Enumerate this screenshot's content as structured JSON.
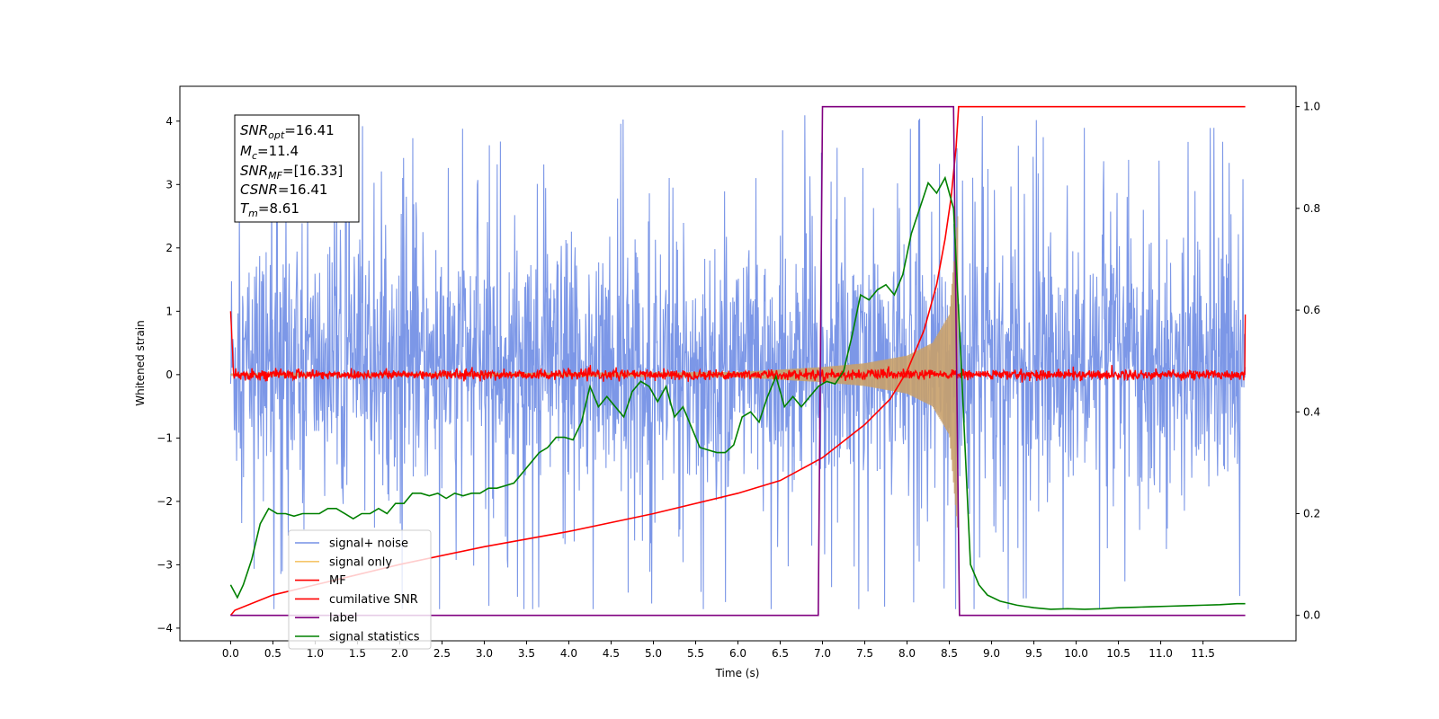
{
  "chart_data": {
    "type": "line",
    "xlabel": "Time (s)",
    "ylabel": "Whitened strain",
    "xlim": [
      -0.6,
      12.6
    ],
    "ylim_left": [
      -4.2,
      4.55
    ],
    "ylim_right": [
      -0.05,
      1.04
    ],
    "x_ticks": [
      "0.0",
      "0.5",
      "1.0",
      "1.5",
      "2.0",
      "2.5",
      "3.0",
      "3.5",
      "4.0",
      "4.5",
      "5.0",
      "5.5",
      "6.0",
      "6.5",
      "7.0",
      "7.5",
      "8.0",
      "8.5",
      "9.0",
      "9.5",
      "10.0",
      "10.5",
      "11.0",
      "11.5"
    ],
    "y_ticks_left": [
      "−4",
      "−3",
      "−2",
      "−1",
      "0",
      "1",
      "2",
      "3",
      "4"
    ],
    "y_ticks_right": [
      "0.0",
      "0.2",
      "0.4",
      "0.6",
      "0.8",
      "1.0"
    ],
    "annotation": {
      "snr_opt": {
        "base": "SNR",
        "sub": "opt",
        "value": "=16.41"
      },
      "mc": {
        "base": "M",
        "sub": "c",
        "value": "=11.4"
      },
      "snr_mf": {
        "base": "SNR",
        "sub": "MF",
        "value": "=[16.33]"
      },
      "csnr": {
        "base": "CSNR",
        "value": "=16.41"
      },
      "tm": {
        "base": "T",
        "sub": "m",
        "value": "=8.61"
      }
    },
    "legend": {
      "placement": "lower-left",
      "entries": [
        {
          "label": "signal+ noise",
          "color": "#7591e6"
        },
        {
          "label": "signal only",
          "color": "#f5c56a"
        },
        {
          "label": "MF",
          "color": "#ff0000"
        },
        {
          "label": "cumilative SNR",
          "color": "#ff0000"
        },
        {
          "label": "label",
          "color": "#800080"
        },
        {
          "label": "signal statistics",
          "color": "#008000"
        }
      ]
    },
    "series": [
      {
        "name": "signal+ noise",
        "axis": "left",
        "color": "#7591e6",
        "t_range": [
          0.0,
          12.0
        ],
        "noise_envelope": [
          -3.7,
          4.15
        ],
        "typical_range": [
          -2.3,
          2.6
        ]
      },
      {
        "name": "signal only",
        "axis": "left",
        "color": "#c8a06a",
        "chirp_envelope": {
          "t": [
            0.0,
            6.0,
            7.0,
            7.5,
            8.0,
            8.3,
            8.5,
            8.6
          ],
          "amp": [
            0.01,
            0.04,
            0.12,
            0.18,
            0.3,
            0.5,
            0.95,
            2.5
          ]
        },
        "t_range": [
          0.0,
          8.6
        ]
      },
      {
        "name": "MF",
        "axis": "left",
        "color": "#ff0000",
        "baseline": 0.0,
        "noise_amp": 0.08,
        "t_range": [
          0.0,
          12.0
        ],
        "edges": [
          {
            "t": 0.0,
            "y": 1.0
          },
          {
            "t": 12.0,
            "y": 0.95
          }
        ]
      },
      {
        "name": "cumilative SNR",
        "axis": "right",
        "color": "#ff0000",
        "t": [
          0.0,
          0.05,
          0.5,
          1.0,
          2.0,
          3.0,
          4.0,
          5.0,
          6.0,
          6.5,
          7.0,
          7.5,
          7.8,
          8.0,
          8.2,
          8.35,
          8.45,
          8.52,
          8.58,
          8.61,
          12.0
        ],
        "y": [
          0.0,
          0.01,
          0.04,
          0.06,
          0.1,
          0.135,
          0.165,
          0.2,
          0.24,
          0.265,
          0.31,
          0.375,
          0.425,
          0.48,
          0.56,
          0.65,
          0.74,
          0.82,
          0.92,
          1.0,
          1.0
        ]
      },
      {
        "name": "label",
        "axis": "right",
        "color": "#800080",
        "t": [
          0.0,
          6.95,
          7.0,
          8.55,
          8.62,
          12.0
        ],
        "y": [
          0.0,
          0.0,
          1.0,
          1.0,
          0.0,
          0.0
        ]
      },
      {
        "name": "signal statistics",
        "axis": "right",
        "color": "#008000",
        "t": [
          0.0,
          0.08,
          0.15,
          0.25,
          0.35,
          0.45,
          0.55,
          0.65,
          0.75,
          0.85,
          0.95,
          1.05,
          1.15,
          1.25,
          1.35,
          1.45,
          1.55,
          1.65,
          1.75,
          1.85,
          1.95,
          2.05,
          2.15,
          2.25,
          2.35,
          2.45,
          2.55,
          2.65,
          2.75,
          2.85,
          2.95,
          3.05,
          3.15,
          3.25,
          3.35,
          3.45,
          3.55,
          3.65,
          3.75,
          3.85,
          3.95,
          4.05,
          4.15,
          4.25,
          4.35,
          4.45,
          4.55,
          4.65,
          4.75,
          4.85,
          4.95,
          5.05,
          5.15,
          5.25,
          5.35,
          5.45,
          5.55,
          5.65,
          5.75,
          5.85,
          5.95,
          6.05,
          6.15,
          6.25,
          6.35,
          6.45,
          6.55,
          6.65,
          6.75,
          6.85,
          6.95,
          7.05,
          7.15,
          7.25,
          7.35,
          7.45,
          7.55,
          7.65,
          7.75,
          7.85,
          7.95,
          8.05,
          8.15,
          8.25,
          8.35,
          8.45,
          8.55,
          8.65,
          8.75,
          8.85,
          8.95,
          9.1,
          9.3,
          9.5,
          9.7,
          9.9,
          10.1,
          10.3,
          10.5,
          10.7,
          10.9,
          11.1,
          11.3,
          11.5,
          11.7,
          11.9,
          12.0
        ],
        "y": [
          0.06,
          0.035,
          0.06,
          0.11,
          0.18,
          0.21,
          0.2,
          0.2,
          0.195,
          0.2,
          0.2,
          0.2,
          0.21,
          0.21,
          0.2,
          0.19,
          0.2,
          0.2,
          0.21,
          0.2,
          0.22,
          0.22,
          0.24,
          0.24,
          0.235,
          0.24,
          0.23,
          0.24,
          0.235,
          0.24,
          0.24,
          0.25,
          0.25,
          0.255,
          0.26,
          0.28,
          0.3,
          0.32,
          0.33,
          0.35,
          0.35,
          0.345,
          0.38,
          0.45,
          0.41,
          0.43,
          0.41,
          0.39,
          0.44,
          0.46,
          0.45,
          0.42,
          0.45,
          0.39,
          0.41,
          0.37,
          0.33,
          0.325,
          0.32,
          0.32,
          0.335,
          0.39,
          0.4,
          0.38,
          0.43,
          0.47,
          0.41,
          0.43,
          0.41,
          0.43,
          0.45,
          0.46,
          0.455,
          0.48,
          0.55,
          0.63,
          0.62,
          0.64,
          0.65,
          0.63,
          0.67,
          0.75,
          0.8,
          0.85,
          0.83,
          0.86,
          0.8,
          0.46,
          0.1,
          0.06,
          0.04,
          0.028,
          0.02,
          0.015,
          0.012,
          0.013,
          0.012,
          0.013,
          0.015,
          0.016,
          0.017,
          0.018,
          0.019,
          0.02,
          0.021,
          0.023,
          0.023
        ]
      }
    ]
  }
}
